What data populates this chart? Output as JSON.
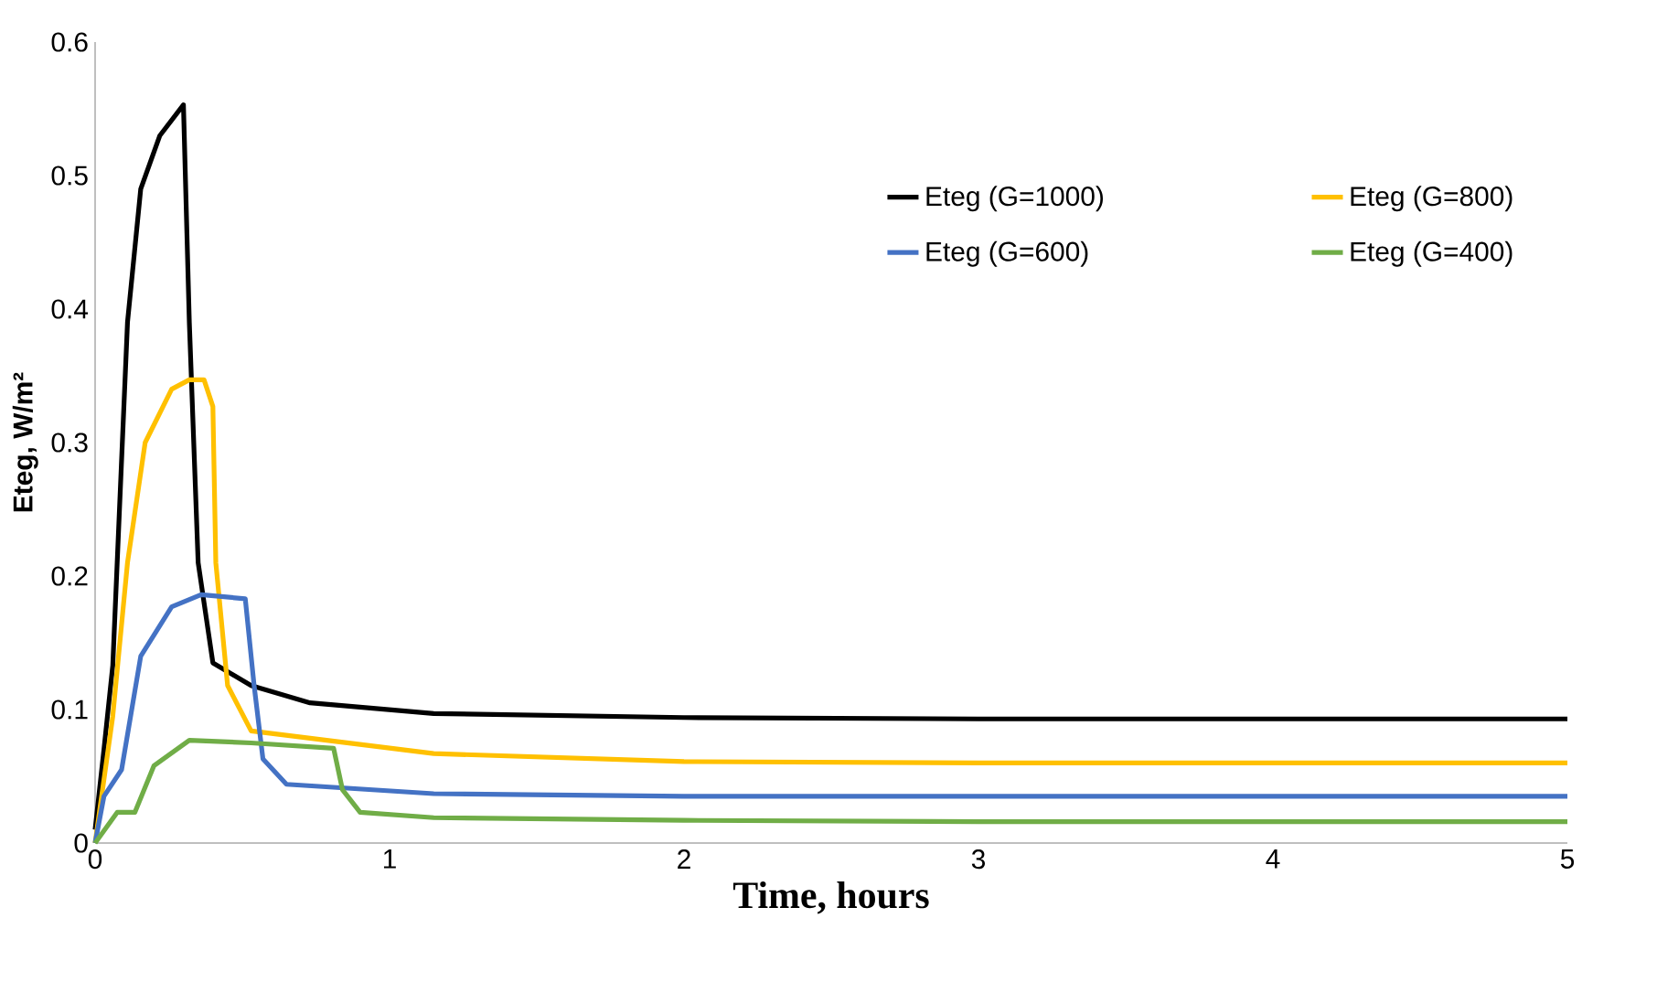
{
  "chart_data": {
    "type": "line",
    "xlabel": "Time, hours",
    "ylabel": "Eteg, W/m²",
    "xlim": [
      0,
      5
    ],
    "ylim": [
      0,
      0.6
    ],
    "xticks": [
      0,
      1,
      2,
      3,
      4,
      5
    ],
    "yticks": [
      0,
      0.1,
      0.2,
      0.3,
      0.4,
      0.5,
      0.6
    ],
    "grid": false,
    "legend": "top right",
    "marker": "none",
    "line_style": "solid",
    "series": [
      {
        "name": "Eteg (G=1000)",
        "color": "#000000",
        "x": [
          0,
          0.03,
          0.06,
          0.11,
          0.155,
          0.22,
          0.3,
          0.32,
          0.35,
          0.4,
          0.53,
          0.73,
          1.15,
          2,
          3,
          5
        ],
        "values": [
          0.01,
          0.07,
          0.133,
          0.39,
          0.49,
          0.53,
          0.553,
          0.39,
          0.21,
          0.135,
          0.118,
          0.105,
          0.097,
          0.094,
          0.093,
          0.093
        ]
      },
      {
        "name": "Eteg (G=800)",
        "color": "#ffc000",
        "x": [
          0,
          0.06,
          0.11,
          0.17,
          0.26,
          0.32,
          0.37,
          0.4,
          0.41,
          0.45,
          0.53,
          1.15,
          2,
          3,
          5
        ],
        "values": [
          0,
          0.095,
          0.21,
          0.3,
          0.34,
          0.347,
          0.347,
          0.327,
          0.21,
          0.118,
          0.084,
          0.067,
          0.061,
          0.06,
          0.06
        ]
      },
      {
        "name": "Eteg (G=600)",
        "color": "#4472c4",
        "x": [
          0,
          0.03,
          0.09,
          0.155,
          0.26,
          0.36,
          0.51,
          0.54,
          0.57,
          0.65,
          1.15,
          2,
          3,
          5
        ],
        "values": [
          0,
          0.035,
          0.055,
          0.14,
          0.177,
          0.186,
          0.183,
          0.118,
          0.063,
          0.044,
          0.037,
          0.035,
          0.035,
          0.035
        ]
      },
      {
        "name": "Eteg (G=400)",
        "color": "#70ad47",
        "x": [
          0,
          0.075,
          0.135,
          0.2,
          0.32,
          0.53,
          0.81,
          0.84,
          0.9,
          1.15,
          2,
          3,
          5
        ],
        "values": [
          0,
          0.023,
          0.023,
          0.058,
          0.077,
          0.075,
          0.071,
          0.04,
          0.023,
          0.019,
          0.017,
          0.016,
          0.016
        ]
      }
    ]
  }
}
